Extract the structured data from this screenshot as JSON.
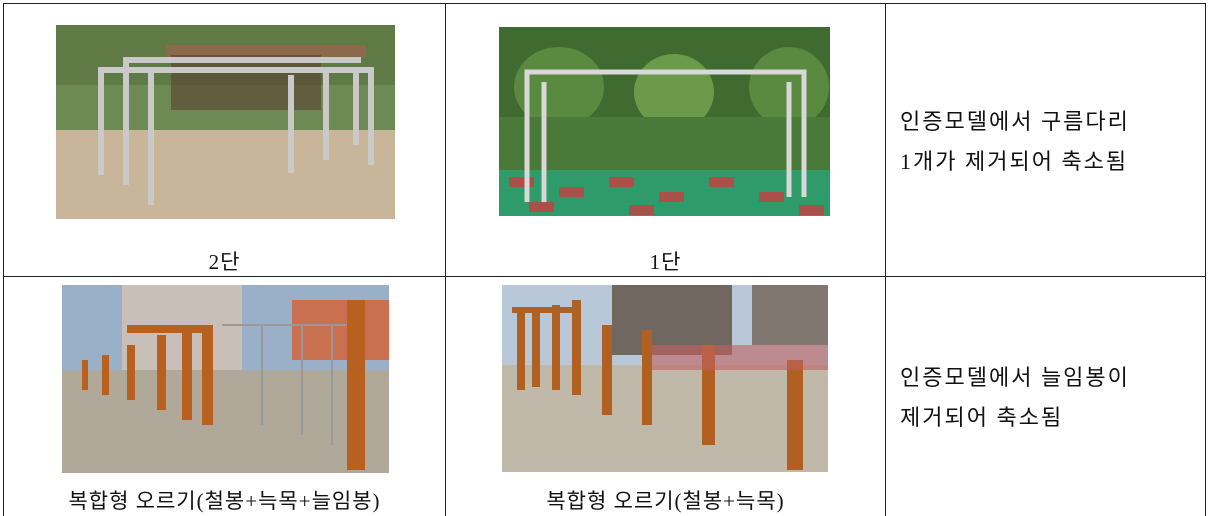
{
  "table": {
    "rows": [
      {
        "cells": [
          {
            "caption": "2단"
          },
          {
            "caption": "1단"
          },
          {
            "lines": [
              "인증모델에서 구름다리",
              "1개가 제거되어 축소됨"
            ]
          }
        ]
      },
      {
        "cells": [
          {
            "caption": "복합형 오르기(철봉+늑목+늘임봉)"
          },
          {
            "caption": "복합형 오르기(철봉+늑목)"
          },
          {
            "lines": [
              "인증모델에서 늘임봉이",
              "제거되어 축소됨"
            ]
          }
        ]
      }
    ]
  }
}
